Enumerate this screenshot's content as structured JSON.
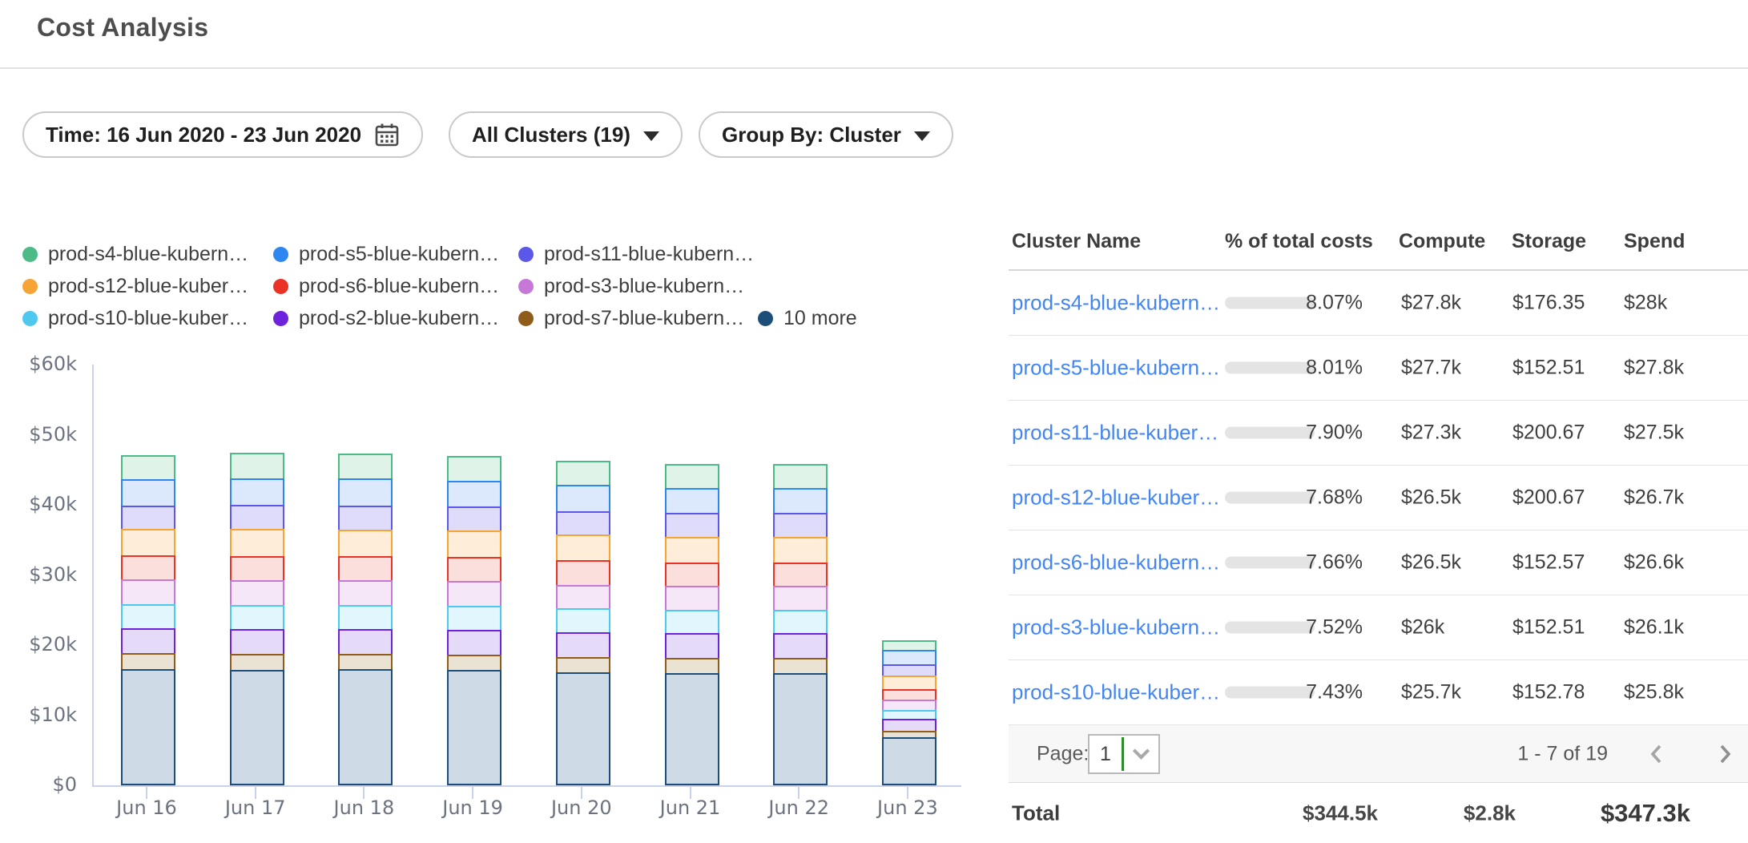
{
  "header": {
    "title": "Cost Analysis"
  },
  "filters": {
    "time_label": "Time: 16 Jun 2020 - 23 Jun 2020",
    "clusters_label": "All Clusters (19)",
    "group_by_label": "Group By: Cluster"
  },
  "legend": {
    "items": [
      {
        "label": "prod-s4-blue-kubern…",
        "color": "#4cbb88"
      },
      {
        "label": "prod-s5-blue-kubern…",
        "color": "#2e86f1"
      },
      {
        "label": "prod-s11-blue-kubern…",
        "color": "#5b57e8"
      },
      {
        "label": "prod-s12-blue-kuber…",
        "color": "#f6a436"
      },
      {
        "label": "prod-s6-blue-kubern…",
        "color": "#ea3326"
      },
      {
        "label": "prod-s3-blue-kubern…",
        "color": "#c678d8"
      },
      {
        "label": "prod-s10-blue-kuber…",
        "color": "#4fc8f0"
      },
      {
        "label": "prod-s2-blue-kubern…",
        "color": "#6d22dc"
      },
      {
        "label": "prod-s7-blue-kubern…",
        "color": "#8f5c1c"
      },
      {
        "label": "10 more",
        "color": "#1d4e79"
      }
    ]
  },
  "chart_data": {
    "type": "bar",
    "stacked": true,
    "categories": [
      "Jun 16",
      "Jun 17",
      "Jun 18",
      "Jun 19",
      "Jun 20",
      "Jun 21",
      "Jun 22",
      "Jun 23"
    ],
    "unit": "USD thousands",
    "ylim": [
      0,
      60
    ],
    "yticks": [
      "$0",
      "$10k",
      "$20k",
      "$30k",
      "$40k",
      "$50k",
      "$60k"
    ],
    "grid": false,
    "legend_position": "top",
    "series": [
      {
        "name": "10 more",
        "color": "#1d4e79",
        "fill": "#cedae6",
        "values": [
          16.4,
          16.2,
          16.3,
          16.2,
          15.9,
          15.8,
          15.8,
          6.6
        ]
      },
      {
        "name": "prod-s7-blue-kubern…",
        "color": "#8f5c1c",
        "fill": "#eae2d3",
        "values": [
          2.2,
          2.3,
          2.2,
          2.2,
          2.2,
          2.2,
          2.2,
          1.0
        ]
      },
      {
        "name": "prod-s2-blue-kubern…",
        "color": "#6d22dc",
        "fill": "#e6daf9",
        "values": [
          3.6,
          3.6,
          3.6,
          3.6,
          3.5,
          3.5,
          3.5,
          1.7
        ]
      },
      {
        "name": "prod-s10-blue-kuber…",
        "color": "#4fc8f0",
        "fill": "#e2f6fd",
        "values": [
          3.4,
          3.4,
          3.4,
          3.4,
          3.4,
          3.3,
          3.3,
          1.2
        ]
      },
      {
        "name": "prod-s3-blue-kubern…",
        "color": "#c678d8",
        "fill": "#f5e6f8",
        "values": [
          3.5,
          3.5,
          3.5,
          3.5,
          3.4,
          3.4,
          3.4,
          1.5
        ]
      },
      {
        "name": "prod-s6-blue-kubern…",
        "color": "#ea3326",
        "fill": "#fbdfdc",
        "values": [
          3.5,
          3.5,
          3.5,
          3.5,
          3.5,
          3.4,
          3.4,
          1.5
        ]
      },
      {
        "name": "prod-s12-blue-kuber…",
        "color": "#f6a436",
        "fill": "#fdedd9",
        "values": [
          3.7,
          3.8,
          3.7,
          3.7,
          3.6,
          3.6,
          3.6,
          1.9
        ]
      },
      {
        "name": "prod-s11-blue-kubern…",
        "color": "#5b57e8",
        "fill": "#dedcfa",
        "values": [
          3.4,
          3.5,
          3.5,
          3.4,
          3.4,
          3.4,
          3.4,
          1.6
        ]
      },
      {
        "name": "prod-s5-blue-kubern…",
        "color": "#2e86f1",
        "fill": "#dce9fc",
        "values": [
          3.7,
          3.8,
          3.8,
          3.7,
          3.7,
          3.6,
          3.6,
          2.1
        ]
      },
      {
        "name": "prod-s4-blue-kubern…",
        "color": "#4cbb88",
        "fill": "#dff3e9",
        "values": [
          3.7,
          3.8,
          3.8,
          3.8,
          3.7,
          3.6,
          3.6,
          1.6
        ]
      }
    ]
  },
  "table": {
    "columns": [
      "Cluster Name",
      "% of total costs",
      "Compute",
      "Storage",
      "Spend"
    ],
    "rows": [
      {
        "name": "prod-s4-blue-kubern…",
        "pct": "8.07%",
        "pct_value": 8.07,
        "compute": "$27.8k",
        "storage": "$176.35",
        "spend": "$28k"
      },
      {
        "name": "prod-s5-blue-kubern…",
        "pct": "8.01%",
        "pct_value": 8.01,
        "compute": "$27.7k",
        "storage": "$152.51",
        "spend": "$27.8k"
      },
      {
        "name": "prod-s11-blue-kuber…",
        "pct": "7.90%",
        "pct_value": 7.9,
        "compute": "$27.3k",
        "storage": "$200.67",
        "spend": "$27.5k"
      },
      {
        "name": "prod-s12-blue-kuber…",
        "pct": "7.68%",
        "pct_value": 7.68,
        "compute": "$26.5k",
        "storage": "$200.67",
        "spend": "$26.7k"
      },
      {
        "name": "prod-s6-blue-kubern…",
        "pct": "7.66%",
        "pct_value": 7.66,
        "compute": "$26.5k",
        "storage": "$152.57",
        "spend": "$26.6k"
      },
      {
        "name": "prod-s3-blue-kubern…",
        "pct": "7.52%",
        "pct_value": 7.52,
        "compute": "$26k",
        "storage": "$152.51",
        "spend": "$26.1k"
      },
      {
        "name": "prod-s10-blue-kuber…",
        "pct": "7.43%",
        "pct_value": 7.43,
        "compute": "$25.7k",
        "storage": "$152.78",
        "spend": "$25.8k"
      }
    ],
    "pagination": {
      "page_label": "Page:",
      "page": "1",
      "range": "1 - 7 of 19"
    },
    "total": {
      "label": "Total",
      "compute": "$344.5k",
      "storage": "$2.8k",
      "spend": "$347.3k"
    }
  },
  "colors": {
    "link": "#4285f4",
    "progress_track": "#e4e4e4",
    "progress_fill": "#3e82f0",
    "axis": "#c9d2ea",
    "pagination_bg": "#f7f7f7",
    "select_cursor_green": "#2e8b2e"
  }
}
